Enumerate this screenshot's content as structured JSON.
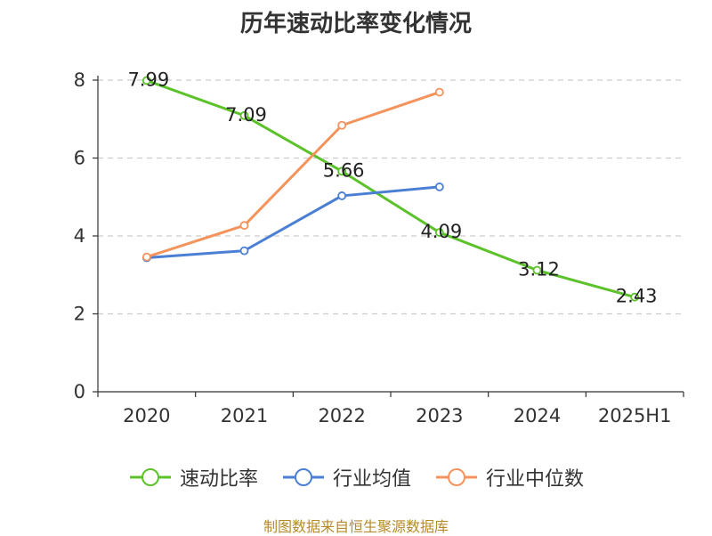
{
  "chart_data": {
    "type": "line",
    "title": "历年速动比率变化情况",
    "categories": [
      "2020",
      "2021",
      "2022",
      "2023",
      "2024",
      "2025H1"
    ],
    "ylim": [
      0,
      8
    ],
    "yticks": [
      "0",
      "2",
      "4",
      "6",
      "8"
    ],
    "grid": true,
    "legend_position": "bottom",
    "series": [
      {
        "name": "速动比率",
        "color": "#5cc22a",
        "values": [
          7.99,
          7.09,
          5.66,
          4.09,
          3.12,
          2.43
        ],
        "labels": [
          "7.99",
          "7.09",
          "5.66",
          "4.09",
          "3.12",
          "2.43"
        ]
      },
      {
        "name": "行业均值",
        "color": "#4a7fd4",
        "values": [
          3.44,
          3.62,
          5.03,
          5.26,
          null,
          null
        ]
      },
      {
        "name": "行业中位数",
        "color": "#f4935c",
        "values": [
          3.46,
          4.27,
          6.84,
          7.69,
          null,
          null
        ]
      }
    ]
  },
  "source": "制图数据来自恒生聚源数据库"
}
